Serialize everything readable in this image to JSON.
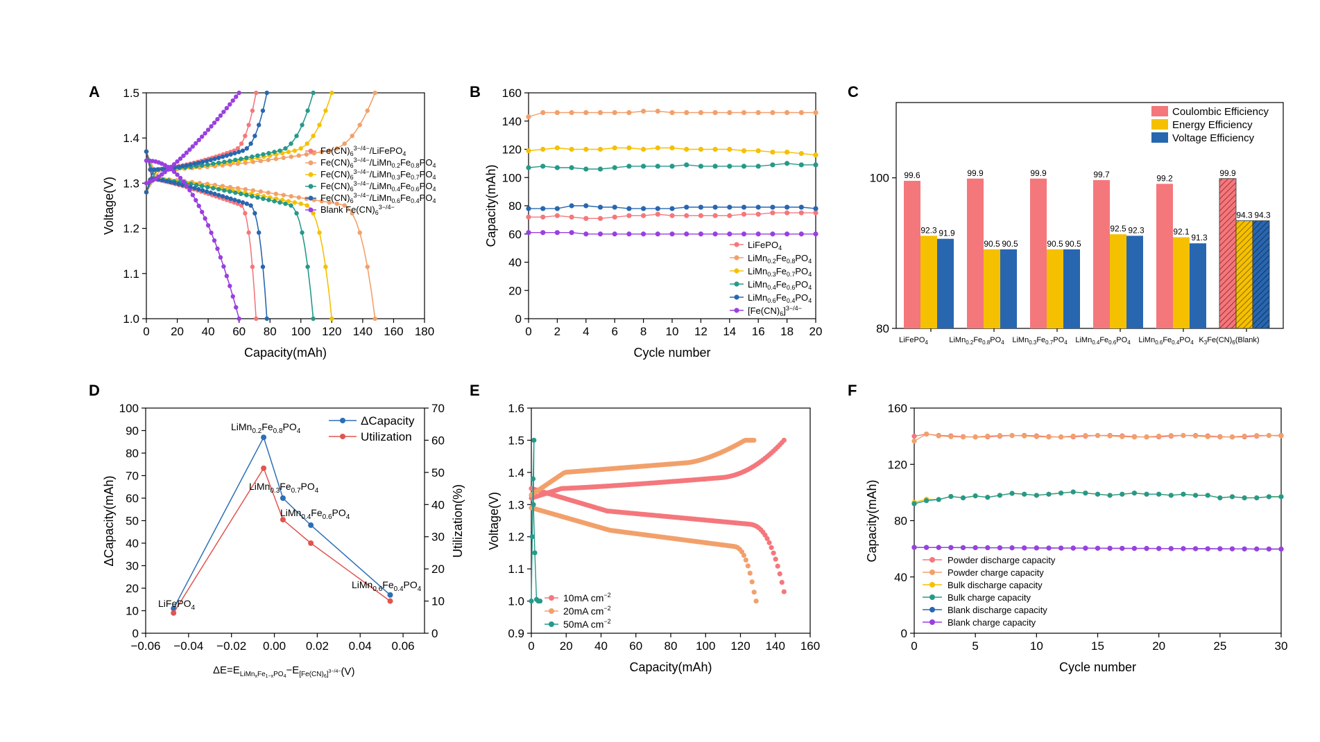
{
  "chart_data": [
    {
      "panel": "A",
      "type": "line",
      "xlabel": "Capacity(mAh)",
      "ylabel": "Voltage(V)",
      "xlim": [
        0,
        180
      ],
      "ylim": [
        1.0,
        1.5
      ],
      "xticks": [
        "0",
        "20",
        "40",
        "60",
        "80",
        "100",
        "120",
        "140",
        "160",
        "180"
      ],
      "yticks": [
        "1.0",
        "1.1",
        "1.2",
        "1.3",
        "1.4",
        "1.5"
      ],
      "series": [
        {
          "name": "Fe(CN)6 3-/4- / LiFePO4",
          "color": "#f4777c",
          "capacity": 71
        },
        {
          "name": "Fe(CN)6 3-/4- / LiMn0.2Fe0.8PO4",
          "color": "#f2a06b",
          "capacity": 148
        },
        {
          "name": "Fe(CN)6 3-/4- / LiMn0.3Fe0.7PO4",
          "color": "#f5c000",
          "capacity": 120
        },
        {
          "name": "Fe(CN)6 3-/4- / LiMn0.4Fe0.6PO4",
          "color": "#26998a",
          "capacity": 108
        },
        {
          "name": "Fe(CN)6 3-/4- / LiMn0.6Fe0.4PO4",
          "color": "#2866b0",
          "capacity": 78
        },
        {
          "name": "Blank Fe(CN)6 3-/4-",
          "color": "#9a3fe0",
          "capacity": 60
        }
      ]
    },
    {
      "panel": "B",
      "type": "line",
      "xlabel": "Cycle number",
      "ylabel": "Capacity(mAh)",
      "xlim": [
        0,
        20
      ],
      "ylim": [
        0,
        160
      ],
      "xticks": [
        "0",
        "2",
        "4",
        "6",
        "8",
        "10",
        "12",
        "14",
        "16",
        "18",
        "20"
      ],
      "yticks": [
        "0",
        "20",
        "40",
        "60",
        "80",
        "100",
        "120",
        "140",
        "160"
      ],
      "x": [
        0,
        1,
        2,
        3,
        4,
        5,
        6,
        7,
        8,
        9,
        10,
        11,
        12,
        13,
        14,
        15,
        16,
        17,
        18,
        19,
        20
      ],
      "series": [
        {
          "name": "LiFePO4",
          "color": "#f4777c",
          "values": [
            72,
            72,
            73,
            72,
            71,
            71,
            72,
            73,
            73,
            74,
            73,
            73,
            73,
            73,
            73,
            74,
            74,
            75,
            75,
            75,
            75
          ]
        },
        {
          "name": "LiMn0.2Fe0.8PO4",
          "color": "#f2a06b",
          "values": [
            143,
            146,
            146,
            146,
            146,
            146,
            146,
            146,
            147,
            147,
            146,
            146,
            146,
            146,
            146,
            146,
            146,
            146,
            146,
            146,
            146
          ]
        },
        {
          "name": "LiMn0.3Fe0.7PO4",
          "color": "#f5c000",
          "values": [
            119,
            120,
            121,
            120,
            120,
            120,
            121,
            121,
            120,
            121,
            121,
            120,
            120,
            120,
            120,
            119,
            119,
            118,
            118,
            117,
            116
          ]
        },
        {
          "name": "LiMn0.4Fe0.6PO4",
          "color": "#26998a",
          "values": [
            107,
            108,
            107,
            107,
            106,
            106,
            107,
            108,
            108,
            108,
            108,
            109,
            108,
            108,
            108,
            108,
            108,
            109,
            110,
            109,
            109
          ]
        },
        {
          "name": "LiMn0.6Fe0.4PO4",
          "color": "#2866b0",
          "values": [
            78,
            78,
            78,
            80,
            80,
            79,
            79,
            78,
            78,
            78,
            78,
            79,
            79,
            79,
            79,
            79,
            79,
            79,
            79,
            79,
            78
          ]
        },
        {
          "name": "[Fe(CN)6]3-/4-",
          "color": "#9a3fe0",
          "values": [
            61,
            61,
            61,
            61,
            60,
            60,
            60,
            60,
            60,
            60,
            60,
            60,
            60,
            60,
            60,
            60,
            60,
            60,
            60,
            60,
            60
          ]
        }
      ]
    },
    {
      "panel": "C",
      "type": "bar",
      "ylim": [
        80,
        110
      ],
      "yticks": [
        "80",
        "100"
      ],
      "categories": [
        "LiFePO4",
        "LiMn0.2Fe0.8PO4",
        "LiMn0.3Fe0.7PO4",
        "LiMn0.4Fe0.6PO4",
        "LiMn0.6Fe0.4PO4",
        "K3Fe(CN)6(Blank)"
      ],
      "series": [
        {
          "name": "Coulombic Efficiency",
          "color": "#f4777c",
          "values": [
            99.6,
            99.9,
            99.9,
            99.7,
            99.2,
            99.9
          ],
          "labels": [
            "99.6",
            "99.9",
            "99.9",
            "99.7",
            "99.2",
            "99.9"
          ]
        },
        {
          "name": "Energy Efficiency",
          "color": "#f5c000",
          "values": [
            92.3,
            90.5,
            90.5,
            92.5,
            92.1,
            94.3
          ],
          "labels": [
            "92.3",
            "90.5",
            "90.5",
            "92.5",
            "92.1",
            "94.3"
          ]
        },
        {
          "name": "Voltage Efficiency",
          "color": "#2866b0",
          "values": [
            91.9,
            90.5,
            90.5,
            92.3,
            91.3,
            94.3
          ],
          "labels": [
            "91.9",
            "90.5",
            "90.5",
            "92.3",
            "91.3",
            "94.3"
          ]
        }
      ]
    },
    {
      "panel": "D",
      "type": "line",
      "xlabel": "ΔE=E LiMnxFe1-xPO4 − E [Fe(CN)6]3-/4- (V)",
      "ylabel": "ΔCapacity(mAh)",
      "y2label": "Utilization(%)",
      "xlim": [
        -0.06,
        0.07
      ],
      "ylim": [
        0,
        100
      ],
      "y2lim": [
        0,
        70
      ],
      "xticks": [
        "−0.06",
        "−0.04",
        "−0.02",
        "0.00",
        "0.02",
        "0.04",
        "0.06"
      ],
      "yticks": [
        "0",
        "10",
        "20",
        "30",
        "40",
        "50",
        "60",
        "70",
        "80",
        "90",
        "100"
      ],
      "y2ticks": [
        "0",
        "10",
        "20",
        "30",
        "40",
        "50",
        "60",
        "70"
      ],
      "x": [
        -0.047,
        -0.005,
        0.004,
        0.017,
        0.054
      ],
      "point_labels": [
        "LiFePO4",
        "LiMn0.2Fe0.8PO4",
        "LiMn0.3Fe0.7PO4",
        "LiMn0.4Fe0.6PO4",
        "LiMn0.6Fe0.4PO4"
      ],
      "series": [
        {
          "name": "ΔCapacity",
          "color": "#2b6fb6",
          "axis": "left",
          "values": [
            11,
            87,
            60,
            48,
            17
          ]
        },
        {
          "name": "Utilization",
          "color": "#e0554f",
          "axis": "right",
          "values": [
            6.3,
            51.3,
            35.3,
            28,
            10
          ]
        }
      ]
    },
    {
      "panel": "E",
      "type": "line",
      "xlabel": "Capacity(mAh)",
      "ylabel": "Voltage(V)",
      "xlim": [
        0,
        160
      ],
      "ylim": [
        0.9,
        1.6
      ],
      "xticks": [
        "0",
        "20",
        "40",
        "60",
        "80",
        "100",
        "120",
        "140",
        "160"
      ],
      "yticks": [
        "0.9",
        "1.0",
        "1.1",
        "1.2",
        "1.3",
        "1.4",
        "1.5",
        "1.6"
      ],
      "series": [
        {
          "name": "10mA cm−2",
          "color": "#f4777c",
          "capacity": 145
        },
        {
          "name": "20mA cm−2",
          "color": "#f2a06b",
          "capacity": 129
        },
        {
          "name": "50mA cm−2",
          "color": "#26998a",
          "capacity": 5
        }
      ]
    },
    {
      "panel": "F",
      "type": "line",
      "xlabel": "Cycle number",
      "ylabel": "Capacity(mAh)",
      "xlim": [
        0,
        30
      ],
      "ylim": [
        0,
        160
      ],
      "xticks": [
        "0",
        "5",
        "10",
        "15",
        "20",
        "25",
        "30"
      ],
      "yticks": [
        "0",
        "40",
        "80",
        "120",
        "160"
      ],
      "series": [
        {
          "name": "Powder discharge capacity",
          "color": "#f4777c",
          "base": 140
        },
        {
          "name": "Powder charge capacity",
          "color": "#f2a06b",
          "base": 140
        },
        {
          "name": "Bulk discharge capacity",
          "color": "#f5c000",
          "base": 98
        },
        {
          "name": "Bulk charge capacity",
          "color": "#26998a",
          "base": 98
        },
        {
          "name": "Blank discharge capacity",
          "color": "#2866b0",
          "base": 60
        },
        {
          "name": "Blank charge capacity",
          "color": "#9a3fe0",
          "base": 60
        }
      ]
    }
  ]
}
